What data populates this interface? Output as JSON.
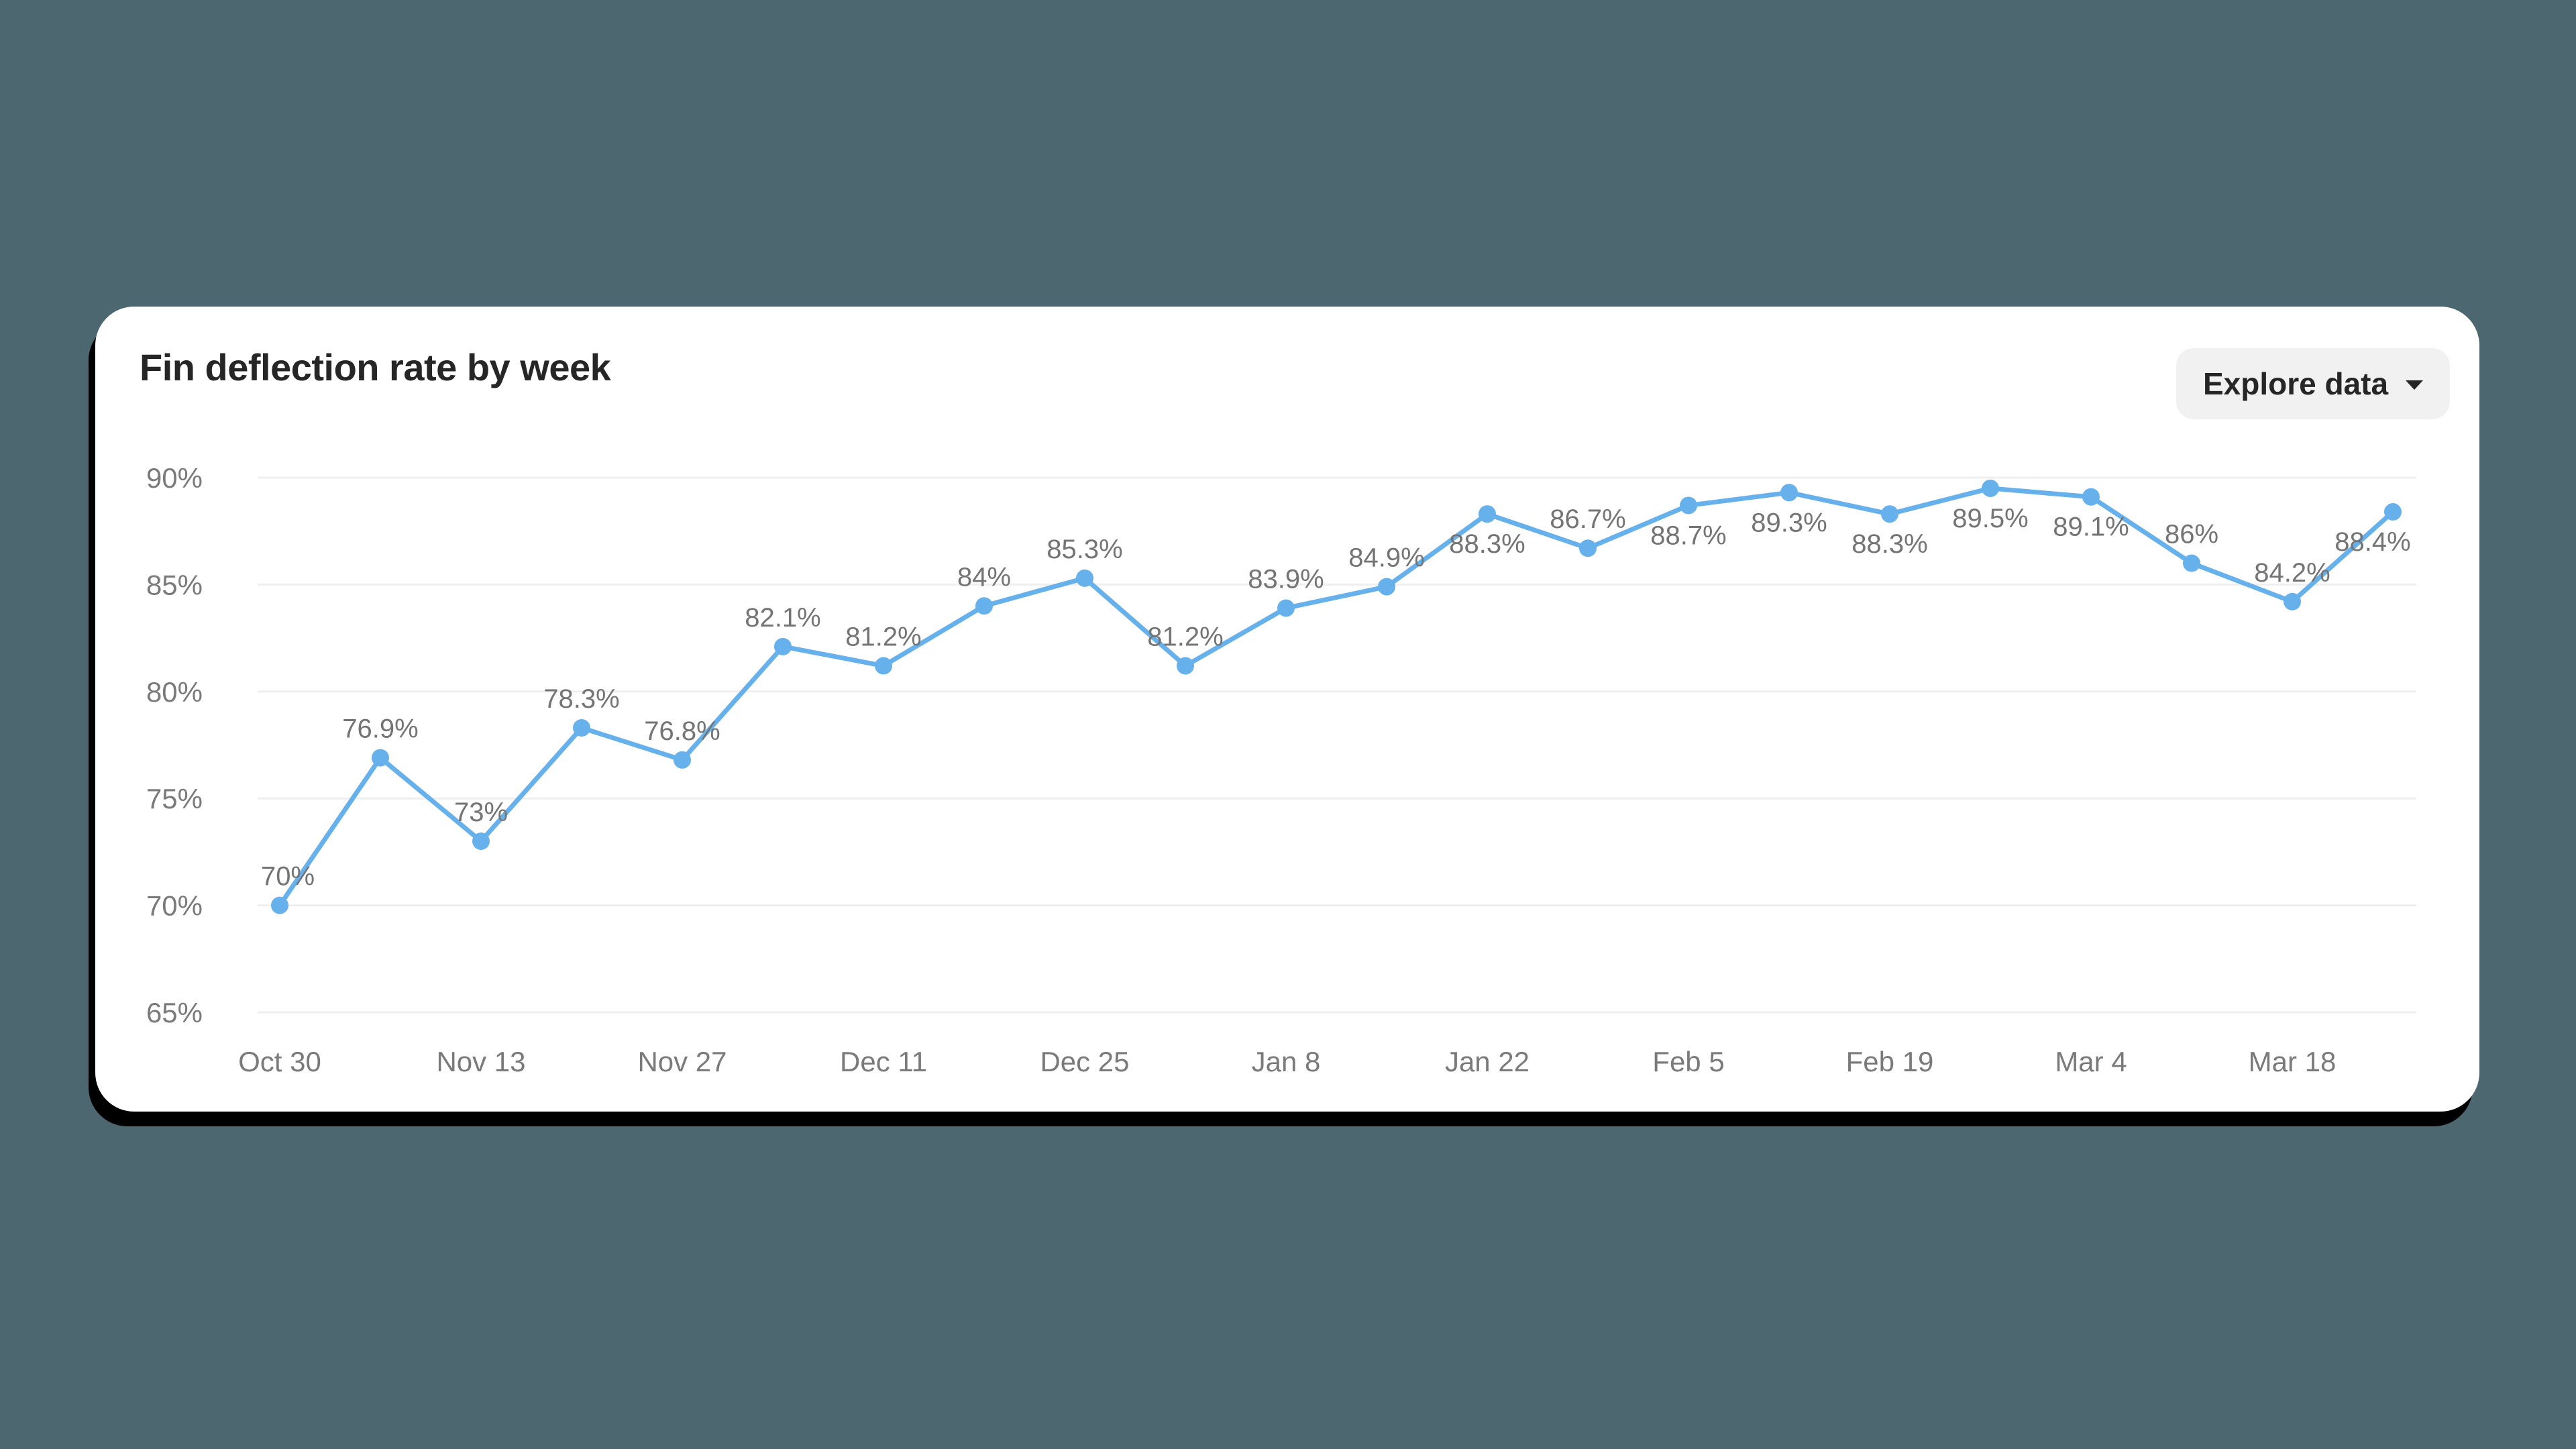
{
  "card": {
    "title": "Fin deflection rate by week",
    "explore_button_label": "Explore data",
    "explore_button_icon": "caret-down-icon"
  },
  "colors": {
    "background": "#4c6770",
    "card": "#ffffff",
    "line": "#66b1ec",
    "gridline": "#efefef",
    "tick_text": "#7a7a7a",
    "title_text": "#262626",
    "button_bg": "#f1f1f1"
  },
  "chart_data": {
    "type": "line",
    "title": "Fin deflection rate by week",
    "xlabel": "",
    "ylabel": "",
    "ylim": [
      65,
      90
    ],
    "yticks": [
      "65%",
      "70%",
      "75%",
      "80%",
      "85%",
      "90%"
    ],
    "xtick_labels": [
      "Oct 30",
      "Nov 13",
      "Nov 27",
      "Dec 11",
      "Dec 25",
      "Jan 8",
      "Jan 22",
      "Feb 5",
      "Feb 19",
      "Mar 4",
      "Mar 18"
    ],
    "x": [
      "Oct 30",
      "Nov 6",
      "Nov 13",
      "Nov 20",
      "Nov 27",
      "Dec 4",
      "Dec 11",
      "Dec 18",
      "Dec 25",
      "Jan 1",
      "Jan 8",
      "Jan 15",
      "Jan 22",
      "Jan 29",
      "Feb 5",
      "Feb 12",
      "Feb 19",
      "Feb 26",
      "Mar 4",
      "Mar 11",
      "Mar 18",
      "Mar 25"
    ],
    "series": [
      {
        "name": "Fin deflection rate",
        "values": [
          70,
          76.9,
          73,
          78.3,
          76.8,
          82.1,
          81.2,
          84,
          85.3,
          81.2,
          83.9,
          84.9,
          88.3,
          86.7,
          88.7,
          89.3,
          88.3,
          89.5,
          89.1,
          86,
          84.2,
          88.4
        ],
        "labels": [
          "70%",
          "76.9%",
          "73%",
          "78.3%",
          "76.8%",
          "82.1%",
          "81.2%",
          "84%",
          "85.3%",
          "81.2%",
          "83.9%",
          "84.9%",
          "88.3%",
          "86.7%",
          "88.7%",
          "89.3%",
          "88.3%",
          "89.5%",
          "89.1%",
          "86%",
          "84.2%",
          "88.4%"
        ]
      }
    ],
    "grid": true,
    "legend": "none",
    "data_labels": true
  }
}
